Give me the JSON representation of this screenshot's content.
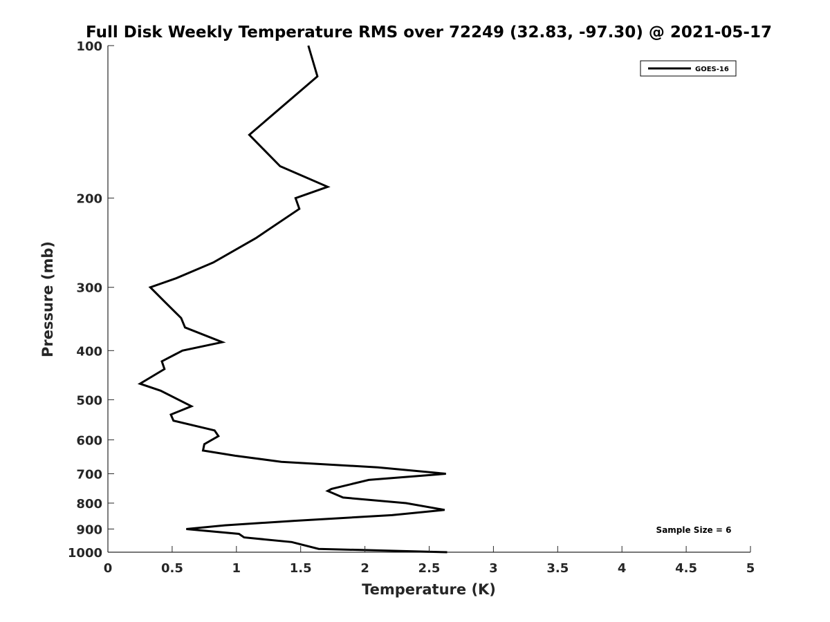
{
  "chart_data": {
    "type": "line",
    "title": "Full Disk Weekly Temperature RMS over 72249 (32.83, -97.30) @ 2021-05-17",
    "xlabel": "Temperature (K)",
    "ylabel": "Pressure (mb)",
    "xlim": [
      0,
      5
    ],
    "ylim": [
      1000,
      100
    ],
    "yscale": "log",
    "y_reversed": true,
    "xticks": [
      0,
      0.5,
      1,
      1.5,
      2,
      2.5,
      3,
      3.5,
      4,
      4.5,
      5
    ],
    "xtick_labels": [
      "0",
      "0.5",
      "1",
      "1.5",
      "2",
      "2.5",
      "3",
      "3.5",
      "4",
      "4.5",
      "5"
    ],
    "yticks": [
      100,
      200,
      300,
      400,
      500,
      600,
      700,
      800,
      900,
      1000
    ],
    "ytick_labels": [
      "100",
      "200",
      "300",
      "400",
      "500",
      "600",
      "700",
      "800",
      "900",
      "1000"
    ],
    "grid": false,
    "legend_position": "top-right",
    "annotation": "Sample Size = 6",
    "colors": {
      "line": "#000000",
      "axis": "#262626"
    },
    "series": [
      {
        "name": "GOES-16",
        "color": "#000000",
        "x": [
          1.56,
          1.63,
          1.1,
          1.34,
          1.71,
          1.46,
          1.49,
          1.15,
          0.82,
          0.53,
          0.33,
          0.44,
          0.57,
          0.6,
          0.89,
          0.58,
          0.42,
          0.44,
          0.25,
          0.41,
          0.65,
          0.49,
          0.51,
          0.83,
          0.86,
          0.75,
          0.74,
          0.99,
          1.35,
          2.1,
          2.63,
          2.03,
          1.74,
          1.71,
          1.83,
          2.32,
          2.62,
          2.21,
          1.45,
          0.91,
          0.61,
          1.02,
          1.06,
          1.43,
          1.64,
          2.64
        ],
        "y": [
          100,
          115,
          150,
          173,
          190,
          200,
          210,
          240,
          268,
          288,
          300,
          320,
          345,
          360,
          385,
          400,
          420,
          435,
          465,
          480,
          515,
          535,
          550,
          575,
          590,
          612,
          630,
          645,
          663,
          680,
          700,
          720,
          750,
          757,
          780,
          800,
          825,
          845,
          867,
          885,
          900,
          920,
          935,
          955,
          985,
          1000
        ]
      }
    ]
  }
}
